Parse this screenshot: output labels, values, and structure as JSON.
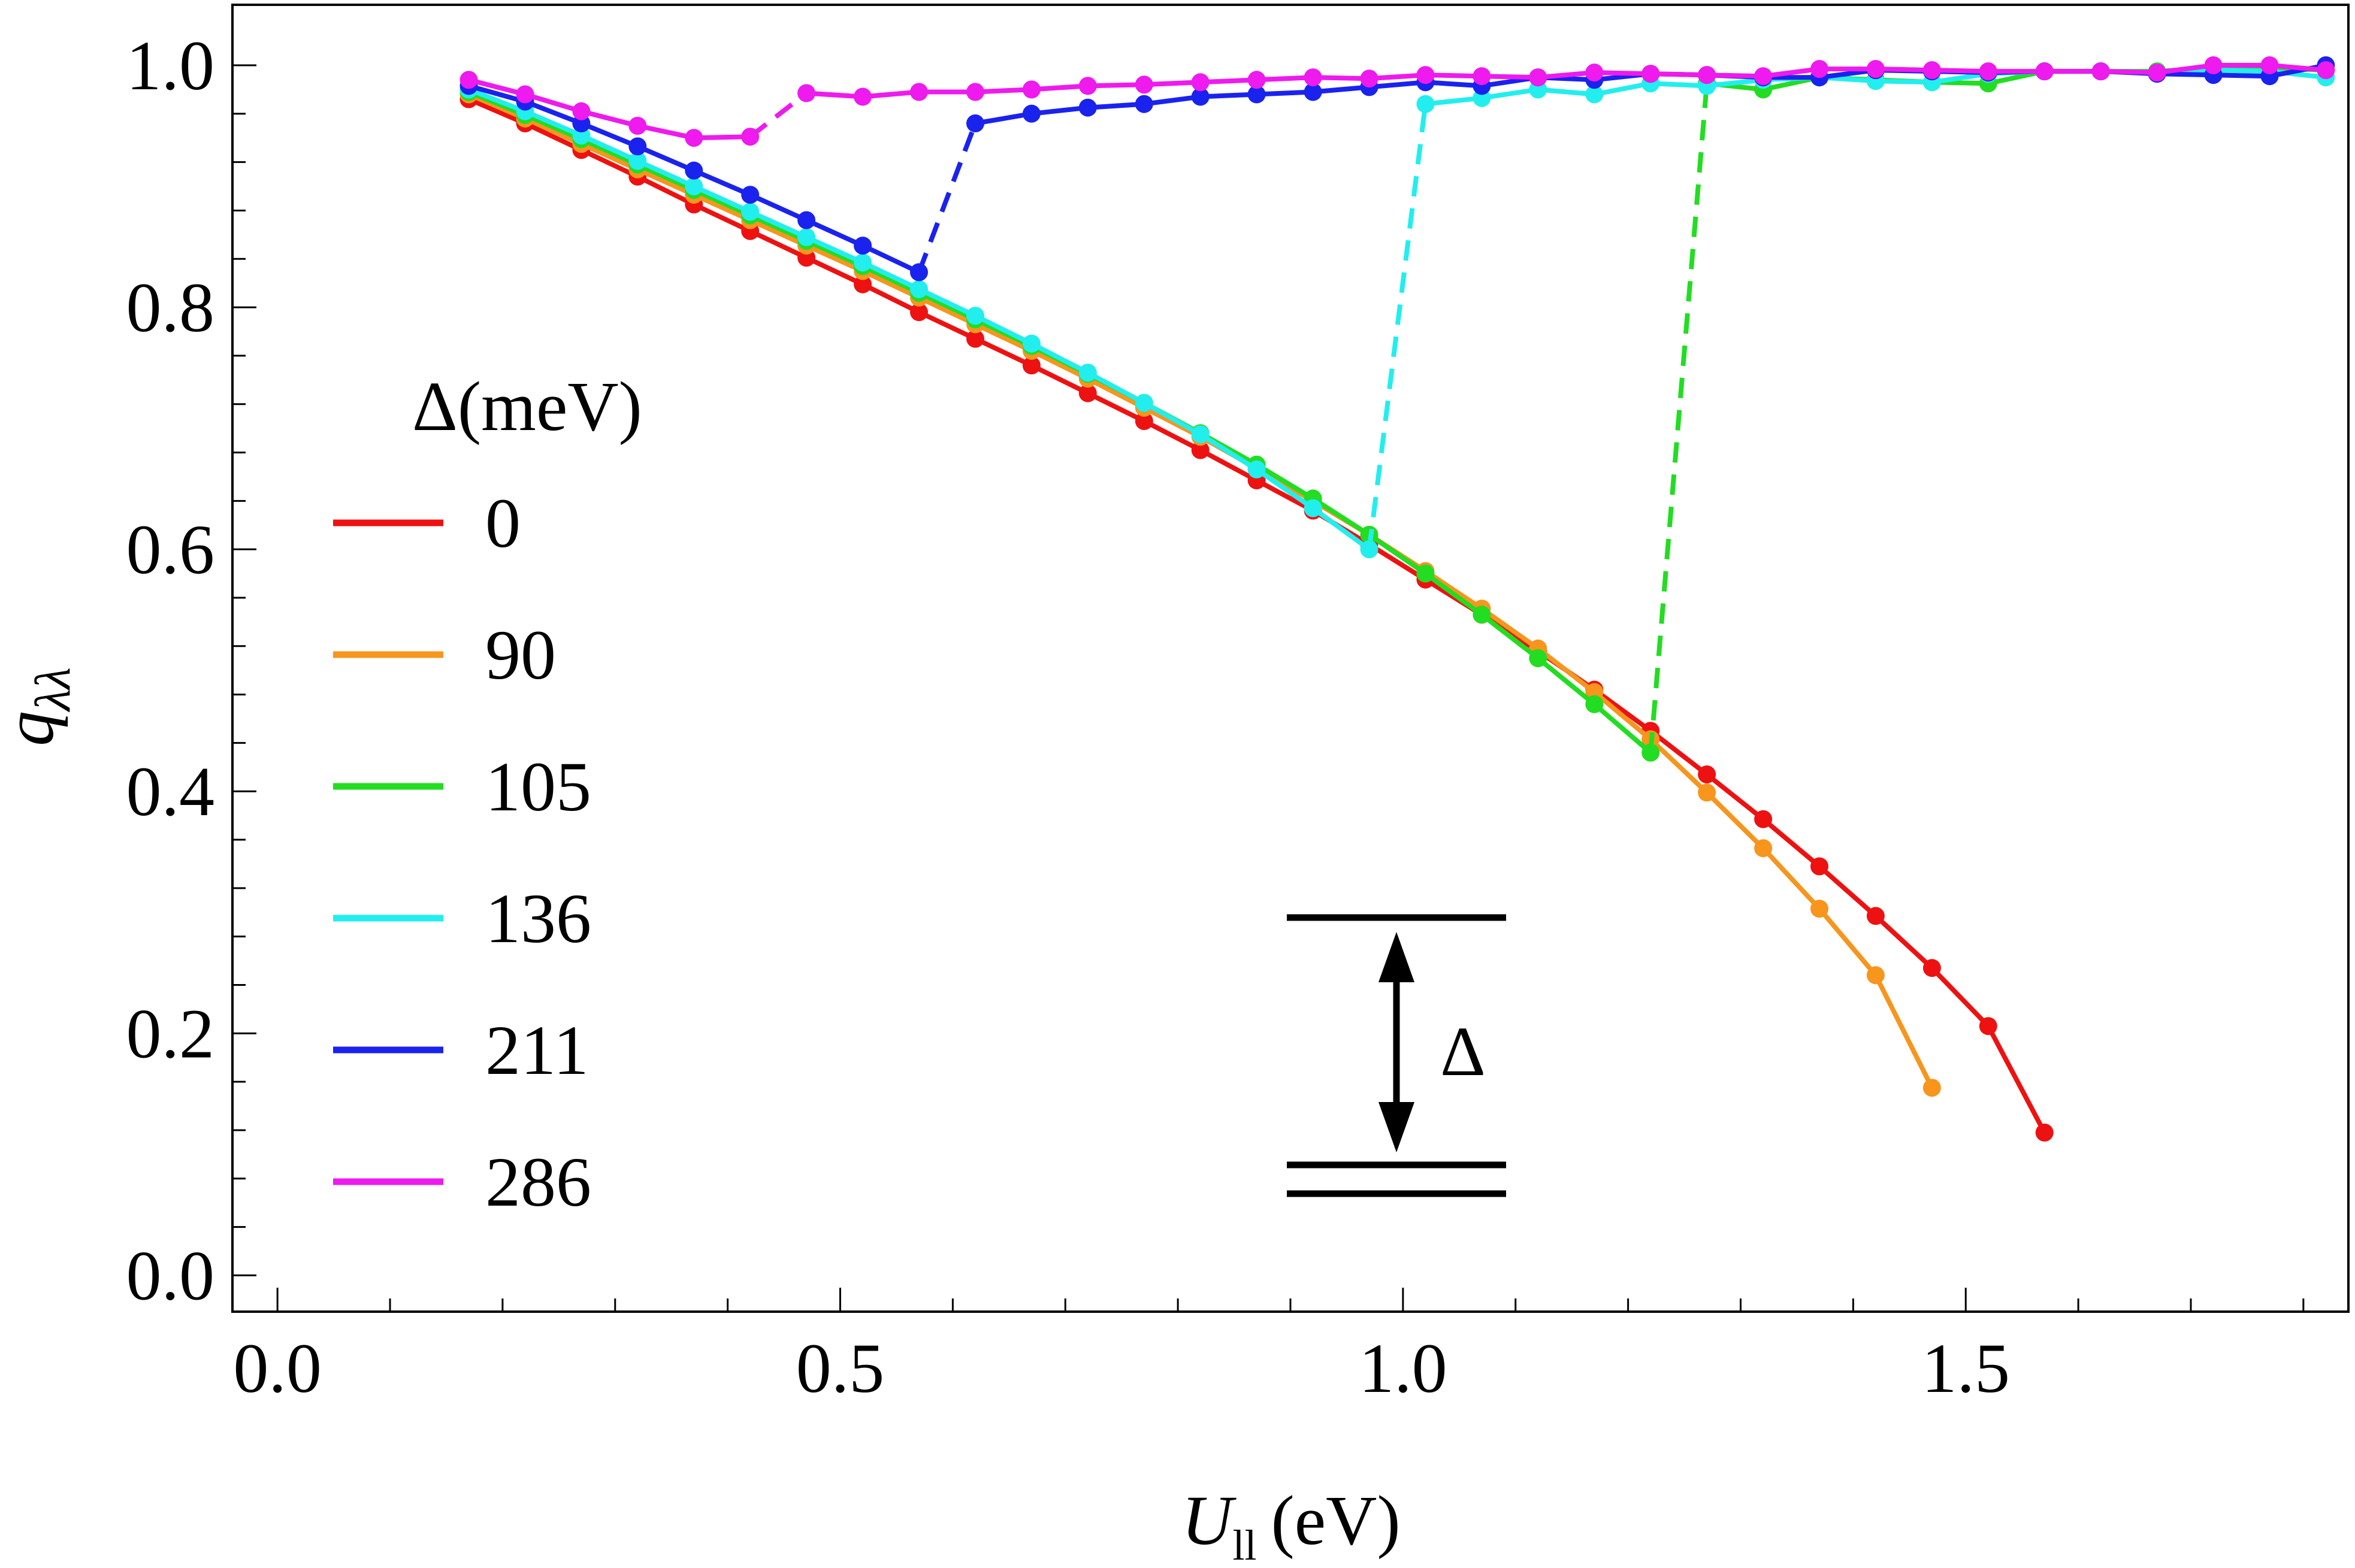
{
  "chart_data": {
    "type": "line",
    "title": "",
    "xlabel": "U",
    "xlabel_sub": "ll",
    "xlabel_unit": "(eV)",
    "ylabel": "q",
    "ylabel_sub": "λλ",
    "xlim": [
      -0.04,
      1.84
    ],
    "ylim": [
      -0.03,
      1.05
    ],
    "xticks": [
      0.0,
      0.5,
      1.0,
      1.5
    ],
    "xtick_labels": [
      "0.0",
      "0.5",
      "1.0",
      "1.5"
    ],
    "yticks": [
      0.0,
      0.2,
      0.4,
      0.6,
      0.8,
      1.0
    ],
    "ytick_labels": [
      "0.0",
      "0.2",
      "0.4",
      "0.6",
      "0.8",
      "1.0"
    ],
    "grid": false,
    "legend": {
      "title": "Δ(meV)",
      "position": "center-left"
    },
    "inset": {
      "label": "Δ",
      "description": "energy level diagram"
    },
    "series": [
      {
        "name": "0",
        "color": "#ee1111",
        "segments": [
          {
            "style": "solid",
            "x": [
              0.17,
              0.22,
              0.27,
              0.32,
              0.37,
              0.42,
              0.47,
              0.52,
              0.57,
              0.62,
              0.67,
              0.72,
              0.77,
              0.82,
              0.87,
              0.92,
              0.97,
              1.02,
              1.07,
              1.12,
              1.17,
              1.22,
              1.27,
              1.32,
              1.37,
              1.42,
              1.47,
              1.52,
              1.57
            ],
            "y": [
              0.972,
              0.952,
              0.93,
              0.908,
              0.885,
              0.863,
              0.841,
              0.819,
              0.796,
              0.774,
              0.752,
              0.729,
              0.706,
              0.682,
              0.657,
              0.632,
              0.604,
              0.575,
              0.546,
              0.516,
              0.484,
              0.45,
              0.414,
              0.377,
              0.338,
              0.297,
              0.254,
              0.206,
              0.118
            ]
          }
        ]
      },
      {
        "name": "90",
        "color": "#f7951d",
        "segments": [
          {
            "style": "solid",
            "x": [
              0.17,
              0.22,
              0.27,
              0.32,
              0.37,
              0.42,
              0.47,
              0.52,
              0.57,
              0.62,
              0.67,
              0.72,
              0.77,
              0.82,
              0.87,
              0.92,
              0.97,
              1.02,
              1.07,
              1.12,
              1.17,
              1.22,
              1.27,
              1.32,
              1.37,
              1.42,
              1.47
            ],
            "y": [
              0.976,
              0.956,
              0.935,
              0.914,
              0.893,
              0.872,
              0.851,
              0.83,
              0.808,
              0.786,
              0.764,
              0.741,
              0.717,
              0.693,
              0.667,
              0.64,
              0.612,
              0.582,
              0.551,
              0.518,
              0.482,
              0.443,
              0.399,
              0.353,
              0.303,
              0.248,
              0.155
            ]
          }
        ]
      },
      {
        "name": "105",
        "color": "#22dd22",
        "segments": [
          {
            "style": "solid",
            "x": [
              0.17,
              0.22,
              0.27,
              0.32,
              0.37,
              0.42,
              0.47,
              0.52,
              0.57,
              0.62,
              0.67,
              0.72,
              0.77,
              0.82,
              0.87,
              0.92,
              0.97,
              1.02,
              1.07,
              1.12,
              1.17,
              1.22
            ],
            "y": [
              0.978,
              0.959,
              0.939,
              0.918,
              0.897,
              0.876,
              0.855,
              0.834,
              0.812,
              0.79,
              0.768,
              0.745,
              0.721,
              0.696,
              0.67,
              0.642,
              0.612,
              0.58,
              0.546,
              0.51,
              0.472,
              0.432
            ]
          },
          {
            "style": "dashed",
            "x": [
              1.22,
              1.27
            ],
            "y": [
              0.432,
              0.985
            ]
          },
          {
            "style": "solid",
            "x": [
              1.27,
              1.32,
              1.37,
              1.42,
              1.47,
              1.52,
              1.57,
              1.62,
              1.67,
              1.72,
              1.77,
              1.82
            ],
            "y": [
              0.985,
              0.98,
              0.99,
              0.988,
              0.986,
              0.985,
              0.995,
              0.995,
              0.995,
              0.998,
              0.998,
              0.996
            ]
          }
        ]
      },
      {
        "name": "136",
        "color": "#22eeee",
        "segments": [
          {
            "style": "solid",
            "x": [
              0.17,
              0.22,
              0.27,
              0.32,
              0.37,
              0.42,
              0.47,
              0.52,
              0.57,
              0.62,
              0.67,
              0.72,
              0.77,
              0.82,
              0.87,
              0.92,
              0.97
            ],
            "y": [
              0.98,
              0.962,
              0.942,
              0.921,
              0.9,
              0.879,
              0.858,
              0.837,
              0.815,
              0.793,
              0.77,
              0.746,
              0.721,
              0.695,
              0.666,
              0.634,
              0.6
            ]
          },
          {
            "style": "dashed",
            "x": [
              0.97,
              1.02
            ],
            "y": [
              0.6,
              0.968
            ]
          },
          {
            "style": "solid",
            "x": [
              1.02,
              1.07,
              1.12,
              1.17,
              1.22,
              1.27,
              1.32,
              1.37,
              1.42,
              1.47,
              1.52,
              1.57,
              1.62,
              1.67,
              1.72,
              1.77,
              1.82
            ],
            "y": [
              0.968,
              0.973,
              0.98,
              0.976,
              0.985,
              0.983,
              0.988,
              0.99,
              0.987,
              0.986,
              0.993,
              0.995,
              0.995,
              0.994,
              0.996,
              0.995,
              0.99
            ]
          }
        ]
      },
      {
        "name": "211",
        "color": "#1a22ee",
        "segments": [
          {
            "style": "solid",
            "x": [
              0.17,
              0.22,
              0.27,
              0.32,
              0.37,
              0.42,
              0.47,
              0.52,
              0.57
            ],
            "y": [
              0.983,
              0.97,
              0.952,
              0.933,
              0.913,
              0.893,
              0.872,
              0.851,
              0.829
            ]
          },
          {
            "style": "dashed",
            "x": [
              0.57,
              0.62
            ],
            "y": [
              0.829,
              0.952
            ]
          },
          {
            "style": "solid",
            "x": [
              0.62,
              0.67,
              0.72,
              0.77,
              0.82,
              0.87,
              0.92,
              0.97,
              1.02,
              1.07,
              1.12,
              1.17,
              1.22,
              1.27,
              1.32,
              1.37,
              1.42,
              1.47,
              1.52,
              1.57,
              1.62,
              1.67,
              1.72,
              1.77,
              1.82
            ],
            "y": [
              0.952,
              0.96,
              0.965,
              0.968,
              0.974,
              0.976,
              0.978,
              0.982,
              0.986,
              0.983,
              0.99,
              0.988,
              0.993,
              0.992,
              0.99,
              0.99,
              0.996,
              0.995,
              0.994,
              0.995,
              0.995,
              0.993,
              0.992,
              0.991,
              1.0
            ]
          }
        ]
      },
      {
        "name": "286",
        "color": "#ee1aee",
        "segments": [
          {
            "style": "solid",
            "x": [
              0.17,
              0.22,
              0.27,
              0.32,
              0.37,
              0.42
            ],
            "y": [
              0.988,
              0.976,
              0.962,
              0.95,
              0.94,
              0.941
            ]
          },
          {
            "style": "dashed",
            "x": [
              0.42,
              0.47
            ],
            "y": [
              0.941,
              0.977
            ]
          },
          {
            "style": "solid",
            "x": [
              0.47,
              0.52,
              0.57,
              0.62,
              0.67,
              0.72,
              0.77,
              0.82,
              0.87,
              0.92,
              0.97,
              1.02,
              1.07,
              1.12,
              1.17,
              1.22,
              1.27,
              1.32,
              1.37,
              1.42,
              1.47,
              1.52,
              1.57,
              1.62,
              1.67,
              1.72,
              1.77,
              1.82
            ],
            "y": [
              0.977,
              0.974,
              0.978,
              0.978,
              0.98,
              0.983,
              0.984,
              0.986,
              0.988,
              0.99,
              0.989,
              0.992,
              0.991,
              0.99,
              0.994,
              0.993,
              0.992,
              0.991,
              0.997,
              0.997,
              0.996,
              0.995,
              0.995,
              0.995,
              0.994,
              1.0,
              1.0,
              0.996
            ]
          }
        ]
      }
    ]
  }
}
